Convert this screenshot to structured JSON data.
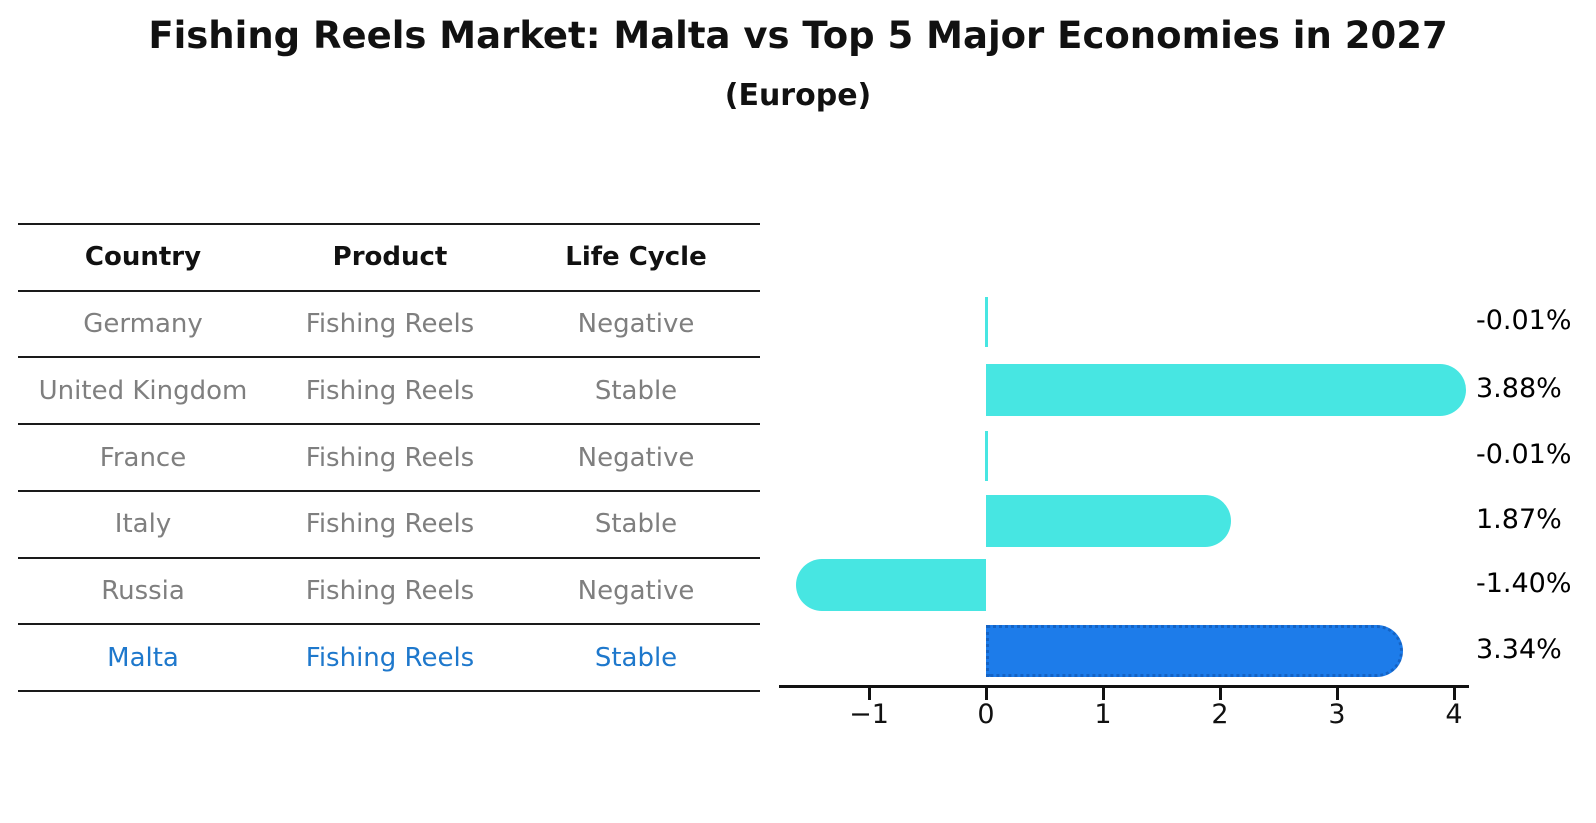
{
  "title": "Fishing Reels Market: Malta vs Top 5 Major Economies in 2027",
  "subtitle": "(Europe)",
  "table": {
    "headers": [
      "Country",
      "Product",
      "Life Cycle"
    ],
    "rows": [
      {
        "country": "Germany",
        "product": "Fishing Reels",
        "life_cycle": "Negative",
        "highlight": false
      },
      {
        "country": "United Kingdom",
        "product": "Fishing Reels",
        "life_cycle": "Stable",
        "highlight": false
      },
      {
        "country": "France",
        "product": "Fishing Reels",
        "life_cycle": "Negative",
        "highlight": false
      },
      {
        "country": "Italy",
        "product": "Fishing Reels",
        "life_cycle": "Stable",
        "highlight": false
      },
      {
        "country": "Russia",
        "product": "Fishing Reels",
        "life_cycle": "Negative",
        "highlight": false
      },
      {
        "country": "Malta",
        "product": "Fishing Reels",
        "life_cycle": "Stable",
        "highlight": true
      }
    ]
  },
  "chart_data": {
    "type": "bar",
    "orientation": "horizontal",
    "title": "Fishing Reels Market: Malta vs Top 5 Major Economies in 2027",
    "subtitle": "(Europe)",
    "categories": [
      "Germany",
      "United Kingdom",
      "France",
      "Italy",
      "Russia",
      "Malta"
    ],
    "values": [
      -0.01,
      3.88,
      -0.01,
      1.87,
      -1.4,
      3.34
    ],
    "value_labels": [
      "-0.01%",
      "3.88%",
      "-0.01%",
      "1.87%",
      "-1.40%",
      "3.34%"
    ],
    "xticks": [
      -1,
      0,
      1,
      2,
      3,
      4
    ],
    "xtick_labels": [
      "−1",
      "0",
      "1",
      "2",
      "3",
      "4"
    ],
    "xlim": [
      -1.77,
      4.13
    ],
    "grid": false,
    "legend": "none",
    "bar_color": "#47E6E2",
    "highlight_index": 5,
    "highlight_color": "#1D7CEA",
    "highlight_edge_color": "#1563C4"
  },
  "colors": {
    "background": "#ffffff",
    "title": "#111111",
    "table_text": "#7f7f7f",
    "table_header": "#111111",
    "highlight_text": "#1E78CC",
    "axis": "#111111"
  }
}
